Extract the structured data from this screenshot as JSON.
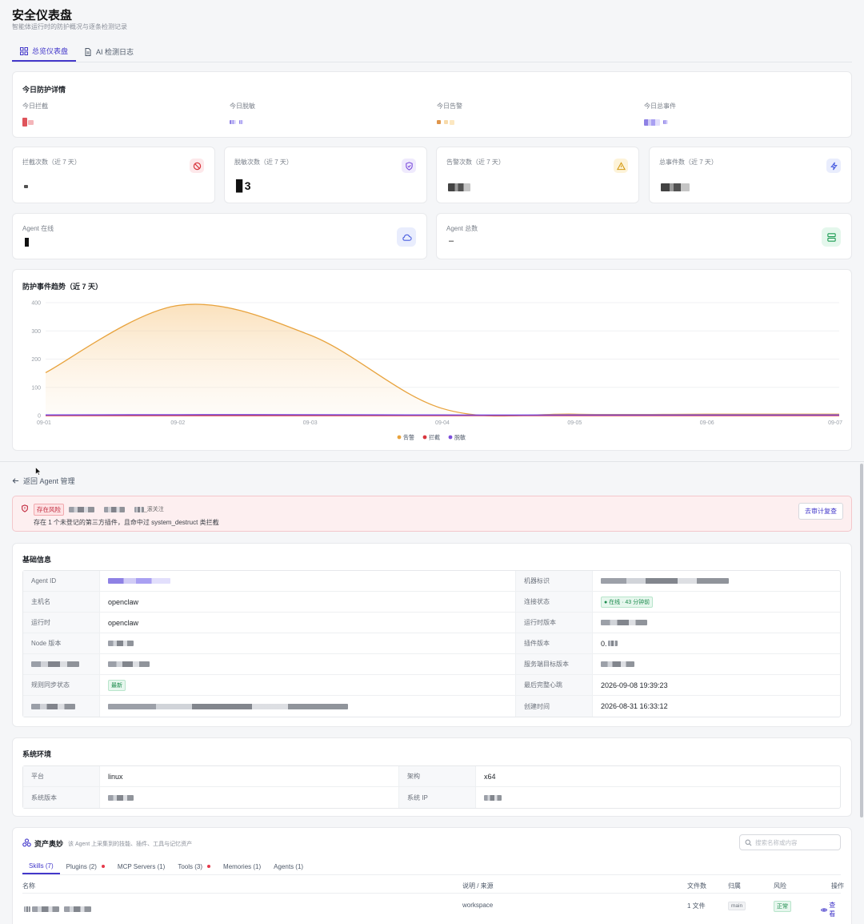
{
  "header": {
    "title": "安全仪表盘",
    "subtitle": "智能体运行时的防护概况与逐条检测记录"
  },
  "tabs": [
    {
      "label": "总览仪表盘",
      "active": true,
      "icon": "grid-icon"
    },
    {
      "label": "AI 检测日志",
      "active": false,
      "icon": "file-icon"
    }
  ],
  "today": {
    "title": "今日防护详情",
    "items": [
      {
        "label": "今日拦截",
        "color": "#d9363e"
      },
      {
        "label": "今日脱敏",
        "color": "#6b5ce7"
      },
      {
        "label": "今日告警",
        "color": "#e8a33d"
      },
      {
        "label": "今日总事件",
        "color": "#5b6cf0"
      }
    ]
  },
  "stats7": [
    {
      "label": "拦截次数（近 7 天）",
      "icon": "block-icon",
      "icon_bg": "#fde8ea",
      "icon_color": "#d9363e",
      "value": "▪"
    },
    {
      "label": "脱敏次数（近 7 天）",
      "icon": "shield-icon",
      "icon_bg": "#efeafd",
      "icon_color": "#7c4ddb",
      "value": "▊3"
    },
    {
      "label": "告警次数（近 7 天）",
      "icon": "warning-icon",
      "icon_bg": "#fdf3d9",
      "icon_color": "#d49a12",
      "value": "▞▘▝"
    },
    {
      "label": "总事件数（近 7 天）",
      "icon": "bolt-icon",
      "icon_bg": "#e9edfd",
      "icon_color": "#4b5fe0",
      "value": "⁄,▞▙"
    }
  ],
  "agents": [
    {
      "label": "Agent 在线",
      "icon": "cloud-icon",
      "icon_bg": "#e9edfd",
      "icon_color": "#4b5fe0",
      "value": "▌"
    },
    {
      "label": "Agent 总数",
      "icon": "server-icon",
      "icon_bg": "#e4f7ec",
      "icon_color": "#1f9d55",
      "value": "–"
    }
  ],
  "chart_data": {
    "type": "area",
    "title": "防护事件趋势（近 7 天）",
    "x": [
      "09-01",
      "09-02",
      "09-03",
      "09-04",
      "09-05",
      "09-06",
      "09-07"
    ],
    "y_ticks": [
      0,
      100,
      200,
      300,
      400
    ],
    "ylim": [
      0,
      400
    ],
    "series": [
      {
        "name": "告警",
        "color": "#e8a33d",
        "values": [
          152,
          390,
          285,
          25,
          5,
          5,
          5
        ]
      },
      {
        "name": "拦截",
        "color": "#d9363e",
        "values": [
          0,
          0,
          0,
          0,
          0,
          0,
          0
        ]
      },
      {
        "name": "脱敏",
        "color": "#7c4ddb",
        "values": [
          2,
          3,
          3,
          2,
          2,
          2,
          2
        ]
      }
    ],
    "grid": true,
    "legend_position": "bottom-center"
  },
  "detail": {
    "back_label": "返回 Agent 管理",
    "risk_badge": "存在风险",
    "risk_suffix": "_滚关注",
    "risk_message": "存在 1 个未登记的第三方插件，且命中过 system_destruct 类拦截",
    "audit_button": "去审计复查",
    "basic_title": "基础信息",
    "basic_rows": [
      {
        "k1": "Agent ID",
        "v1": "",
        "k2": "机器标识",
        "v2": ""
      },
      {
        "k1": "主机名",
        "v1": "openclaw",
        "k2": "连接状态",
        "v2": "● 在线 · 43 分钟前"
      },
      {
        "k1": "运行时",
        "v1": "openclaw",
        "k2": "运行时版本",
        "v2": ""
      },
      {
        "k1": "Node 版本",
        "v1": "",
        "k2": "插件版本",
        "v2": "0."
      },
      {
        "k1": "",
        "v1": "",
        "k2": "服务端目标版本",
        "v2": ""
      },
      {
        "k1": "规则同步状态",
        "v1": "最新",
        "k2": "最后完整心跳",
        "v2": "2026-09-08 19:39:23"
      },
      {
        "k1": "",
        "v1": "",
        "k2": "创建时间",
        "v2": "2026-08-31 16:33:12"
      }
    ],
    "env_title": "系统环境",
    "env_rows": [
      {
        "k1": "平台",
        "v1": "linux",
        "k2": "架构",
        "v2": "x64"
      },
      {
        "k1": "系统版本",
        "v1": "",
        "k2": "系统 IP",
        "v2": ""
      }
    ],
    "assets_title": "资产奥妙",
    "assets_sub": "该 Agent 上采集到的技能、插件、工具与记忆资产",
    "assets_search_placeholder": "搜索名称或内容",
    "asset_tabs": [
      {
        "label": "Skills (7)",
        "active": true,
        "dot": false
      },
      {
        "label": "Plugins (2)",
        "active": false,
        "dot": true
      },
      {
        "label": "MCP Servers (1)",
        "active": false,
        "dot": false
      },
      {
        "label": "Tools (3)",
        "active": false,
        "dot": true
      },
      {
        "label": "Memories (1)",
        "active": false,
        "dot": false
      },
      {
        "label": "Agents (1)",
        "active": false,
        "dot": false
      }
    ],
    "table_headers": [
      "名称",
      "说明 / 来源",
      "文件数",
      "归属",
      "风险",
      "操作"
    ],
    "table_row": {
      "source": "workspace",
      "files": "1 文件",
      "owner": "main",
      "risk": "正常",
      "action": "查看"
    }
  }
}
